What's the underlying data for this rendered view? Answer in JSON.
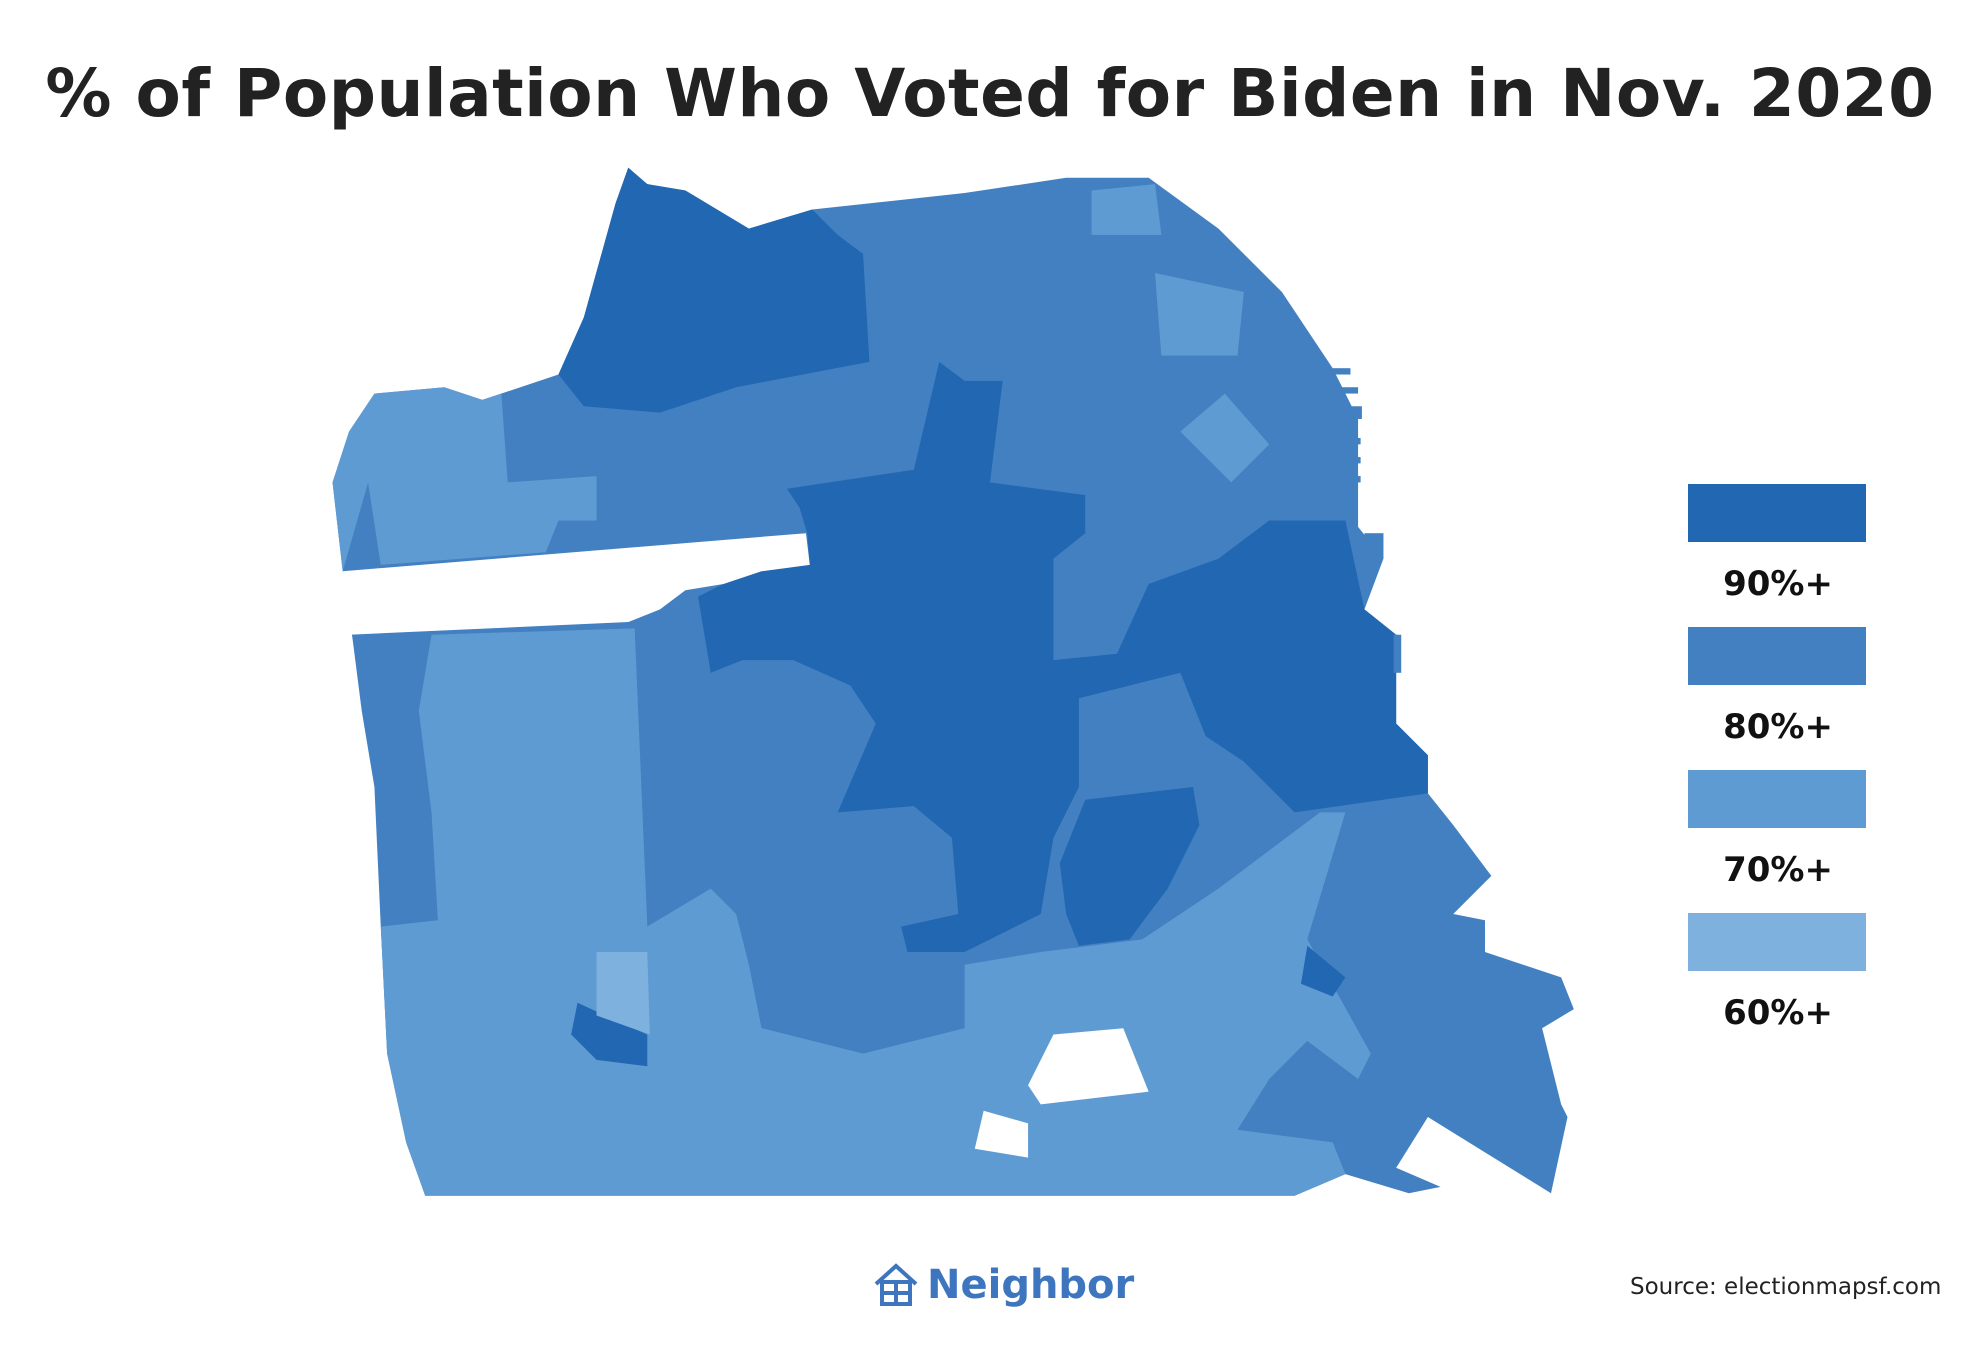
{
  "title": "% of Population Who Voted for Biden in Nov. 2020",
  "legend": [
    {
      "label": "90%+",
      "color": "#2167b1"
    },
    {
      "label": "80%+",
      "color": "#4380c1"
    },
    {
      "label": "70%+",
      "color": "#5f9bd3"
    },
    {
      "label": "60%+",
      "color": "#7eb1de"
    }
  ],
  "brand": {
    "name": "Neighbor",
    "icon": "house-icon"
  },
  "source": "Source: electionmapsf.com"
}
